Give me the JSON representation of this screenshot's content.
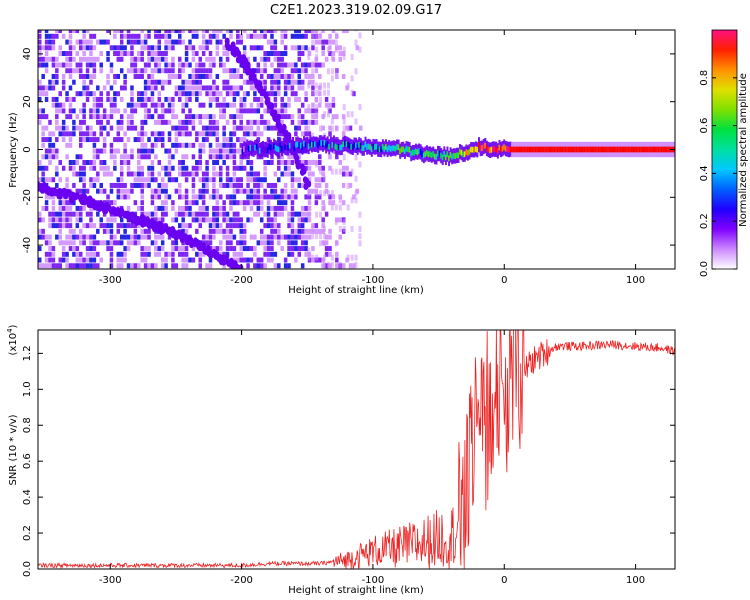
{
  "title": "C2E1.2023.319.02.09.G17",
  "chart_data": [
    {
      "type": "heatmap",
      "title": "C2E1.2023.319.02.09.G17",
      "xlabel": "Height of straight line (km)",
      "ylabel": "Frequency (Hz)",
      "xlim": [
        -355,
        130
      ],
      "ylim": [
        -50,
        50
      ],
      "xticks": [
        -300,
        -200,
        -100,
        0,
        100
      ],
      "xtick_labels": [
        "-300",
        "-200",
        "-100",
        "0",
        "100"
      ],
      "yticks": [
        -40,
        -20,
        0,
        20,
        40
      ],
      "ytick_labels": [
        "-40",
        "-20",
        "0",
        "20",
        "40"
      ],
      "colorbar": {
        "label": "Normalized spectral amplitude",
        "range": [
          0,
          1
        ],
        "ticks": [
          0.0,
          0.2,
          0.4,
          0.6,
          0.8
        ],
        "tick_labels": [
          "0.0",
          "0.2",
          "0.4",
          "0.6",
          "0.8"
        ],
        "colormap_stops": [
          "#ffffff",
          "#cc88ff",
          "#6a00f0",
          "#0000e0",
          "#00c8ff",
          "#00e060",
          "#60e000",
          "#e8e800",
          "#ff8000",
          "#ff0000",
          "#ff1080"
        ]
      },
      "features": [
        {
          "name": "noise",
          "x_range": [
            -355,
            -120
          ],
          "y_range": [
            -50,
            50
          ],
          "amplitude": 0.15
        },
        {
          "name": "diagonal-track",
          "x": [
            -210,
            -190,
            -170,
            -160,
            -150
          ],
          "y": [
            45,
            30,
            10,
            0,
            -15
          ],
          "amplitude": 0.2
        },
        {
          "name": "diagonal-track-lower",
          "x": [
            -355,
            -300,
            -250,
            -200
          ],
          "y": [
            -15,
            -25,
            -35,
            -50
          ],
          "amplitude": 0.15
        },
        {
          "name": "doppler-line",
          "x": [
            -200,
            -140,
            -100,
            -80,
            -60,
            -40,
            -20,
            0,
            130
          ],
          "y": [
            0,
            2,
            1,
            0,
            -2,
            -3,
            1,
            0,
            0
          ],
          "amplitude": [
            0.2,
            0.35,
            0.45,
            0.5,
            0.45,
            0.5,
            0.85,
            0.9,
            0.95
          ]
        }
      ]
    },
    {
      "type": "line",
      "xlabel": "Height of straight line (km)",
      "ylabel": "SNR (10 * v/v)",
      "y_multiplier": "(x10",
      "y_multiplier_exp": "4",
      "xlim": [
        -355,
        130
      ],
      "ylim": [
        0,
        1.33
      ],
      "xticks": [
        -300,
        -200,
        -100,
        0,
        100
      ],
      "xtick_labels": [
        "-300",
        "-200",
        "-100",
        "0",
        "100"
      ],
      "yticks": [
        0.0,
        0.2,
        0.4,
        0.6,
        0.8,
        1.0,
        1.2
      ],
      "ytick_labels": [
        "0.0",
        "0.2",
        "0.4",
        "0.6",
        "0.8",
        "1.0",
        "1.2"
      ],
      "series": [
        {
          "color": "#ee2222",
          "x": [
            -355,
            -300,
            -250,
            -200,
            -180,
            -160,
            -140,
            -120,
            -100,
            -80,
            -60,
            -50,
            -40,
            -30,
            -25,
            -20,
            -15,
            -10,
            0,
            10,
            20,
            30,
            40,
            60,
            80,
            100,
            120,
            130
          ],
          "y": [
            0.02,
            0.02,
            0.02,
            0.02,
            0.03,
            0.03,
            0.03,
            0.05,
            0.1,
            0.12,
            0.15,
            0.17,
            0.18,
            0.35,
            0.6,
            0.7,
            0.75,
            0.8,
            0.95,
            1.05,
            1.15,
            1.2,
            1.24,
            1.24,
            1.25,
            1.24,
            1.23,
            1.21
          ]
        }
      ]
    }
  ]
}
